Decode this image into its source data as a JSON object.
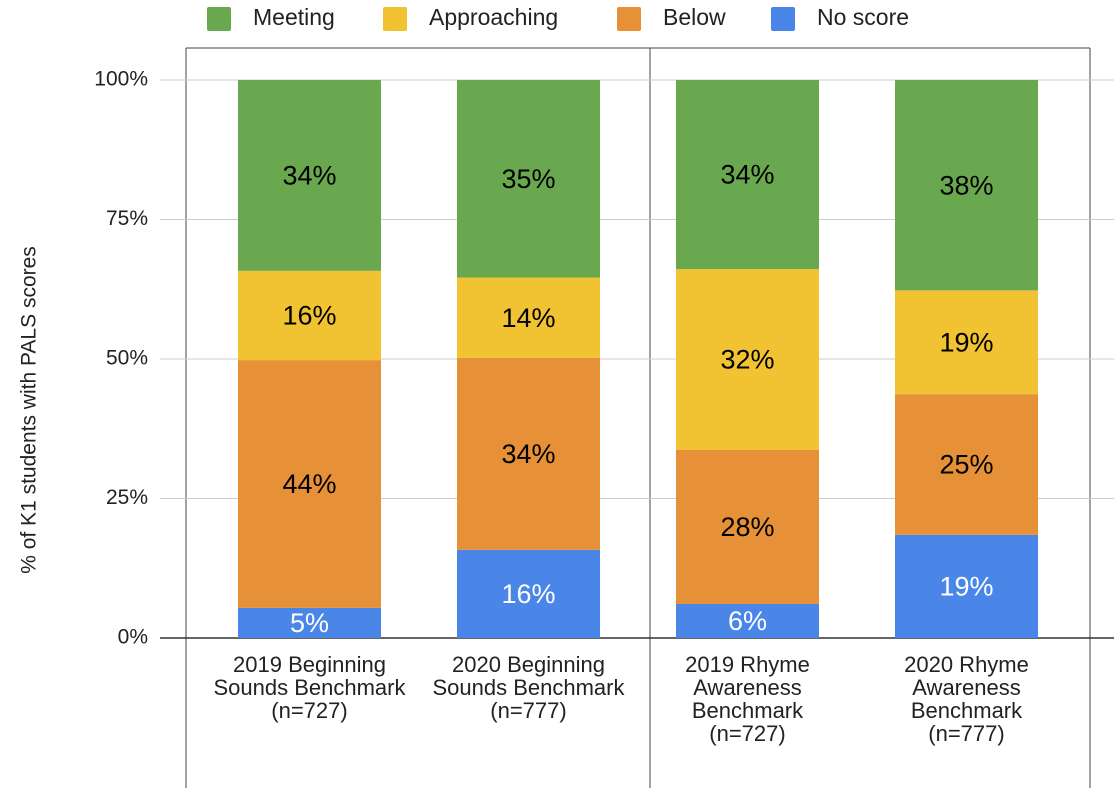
{
  "chart_data": {
    "type": "stacked_bar",
    "y_axis_label": "% of K1 students with PALS scores",
    "categories": [
      "2019 Beginning Sounds Benchmark (n=727)",
      "2020 Beginning Sounds Benchmark (n=777)",
      "2019 Rhyme Awareness Benchmark (n=727)",
      "2020 Rhyme Awareness Benchmark (n=777)"
    ],
    "series": [
      {
        "name": "Meeting",
        "color": "#6aa84f",
        "label_color": "#000000",
        "values": [
          34.2,
          35.4,
          33.9,
          37.7
        ],
        "value_labels": [
          "34%",
          "35%",
          "34%",
          "38%"
        ]
      },
      {
        "name": "Approaching",
        "color": "#f1c232",
        "label_color": "#000000",
        "values": [
          16.0,
          14.4,
          32.4,
          18.6
        ],
        "value_labels": [
          "16%",
          "14%",
          "32%",
          "19%"
        ]
      },
      {
        "name": "Below",
        "color": "#e69138",
        "label_color": "#000000",
        "values": [
          44.4,
          34.4,
          27.6,
          25.2
        ],
        "value_labels": [
          "44%",
          "34%",
          "28%",
          "25%"
        ]
      },
      {
        "name": "No score",
        "color": "#4a86e8",
        "label_color": "#ffffff",
        "values": [
          5.4,
          15.8,
          6.1,
          18.5
        ],
        "value_labels": [
          "5%",
          "16%",
          "6%",
          "19%"
        ]
      }
    ],
    "ylim": [
      0,
      100
    ],
    "yticks": [
      {
        "value": 0,
        "label": "0%"
      },
      {
        "value": 25,
        "label": "25%"
      },
      {
        "value": 50,
        "label": "50%"
      },
      {
        "value": 75,
        "label": "75%"
      },
      {
        "value": 100,
        "label": "100%"
      }
    ],
    "grid": true,
    "legend": "top"
  }
}
